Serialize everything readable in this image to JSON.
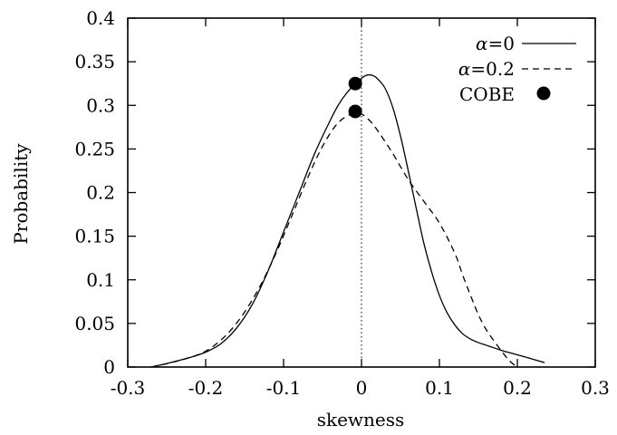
{
  "chart_data": {
    "type": "line",
    "xlabel": "skewness",
    "ylabel": "Probability",
    "xlim": [
      -0.3,
      0.3
    ],
    "ylim": [
      0,
      0.4
    ],
    "xticks": [
      "-0.3",
      "-0.2",
      "-0.1",
      "0",
      "0.1",
      "0.2",
      "0.3"
    ],
    "yticks": [
      "0",
      "0.05",
      "0.1",
      "0.15",
      "0.2",
      "0.25",
      "0.3",
      "0.35",
      "0.4"
    ],
    "grid": false,
    "legend_position": "top-right",
    "reference_line": {
      "x": 0,
      "style": "dotted"
    },
    "series": [
      {
        "name": "α=0",
        "legend_symbol": "α",
        "legend_value": "=0",
        "style": "solid",
        "x": [
          -0.27,
          -0.25,
          -0.22,
          -0.2,
          -0.18,
          -0.16,
          -0.14,
          -0.12,
          -0.1,
          -0.08,
          -0.06,
          -0.04,
          -0.03,
          -0.02,
          -0.01,
          0.0,
          0.005,
          0.01,
          0.015,
          0.02,
          0.03,
          0.04,
          0.05,
          0.06,
          0.07,
          0.08,
          0.09,
          0.1,
          0.11,
          0.12,
          0.13,
          0.14,
          0.15,
          0.16,
          0.17,
          0.18,
          0.2,
          0.22,
          0.235
        ],
        "y": [
          0.0,
          0.004,
          0.011,
          0.017,
          0.027,
          0.045,
          0.072,
          0.11,
          0.155,
          0.2,
          0.245,
          0.283,
          0.3,
          0.313,
          0.323,
          0.331,
          0.334,
          0.335,
          0.334,
          0.331,
          0.32,
          0.298,
          0.265,
          0.225,
          0.183,
          0.142,
          0.109,
          0.082,
          0.062,
          0.048,
          0.038,
          0.032,
          0.028,
          0.025,
          0.022,
          0.019,
          0.014,
          0.009,
          0.005
        ]
      },
      {
        "name": "α=0.2",
        "legend_symbol": "α",
        "legend_value": "=0.2",
        "style": "dashed",
        "x": [
          -0.27,
          -0.24,
          -0.21,
          -0.19,
          -0.17,
          -0.15,
          -0.13,
          -0.11,
          -0.09,
          -0.07,
          -0.05,
          -0.03,
          -0.01,
          0.0,
          0.01,
          0.02,
          0.04,
          0.06,
          0.08,
          0.1,
          0.12,
          0.13,
          0.14,
          0.15,
          0.16,
          0.17,
          0.18,
          0.19,
          0.2
        ],
        "y": [
          0.0,
          0.006,
          0.014,
          0.024,
          0.04,
          0.063,
          0.093,
          0.13,
          0.172,
          0.215,
          0.253,
          0.28,
          0.291,
          0.29,
          0.283,
          0.272,
          0.245,
          0.215,
          0.19,
          0.165,
          0.13,
          0.105,
          0.082,
          0.06,
          0.043,
          0.03,
          0.018,
          0.007,
          0.0
        ]
      },
      {
        "name": "COBE",
        "style": "points",
        "x": [
          -0.008,
          -0.008
        ],
        "y": [
          0.325,
          0.293
        ]
      }
    ]
  }
}
